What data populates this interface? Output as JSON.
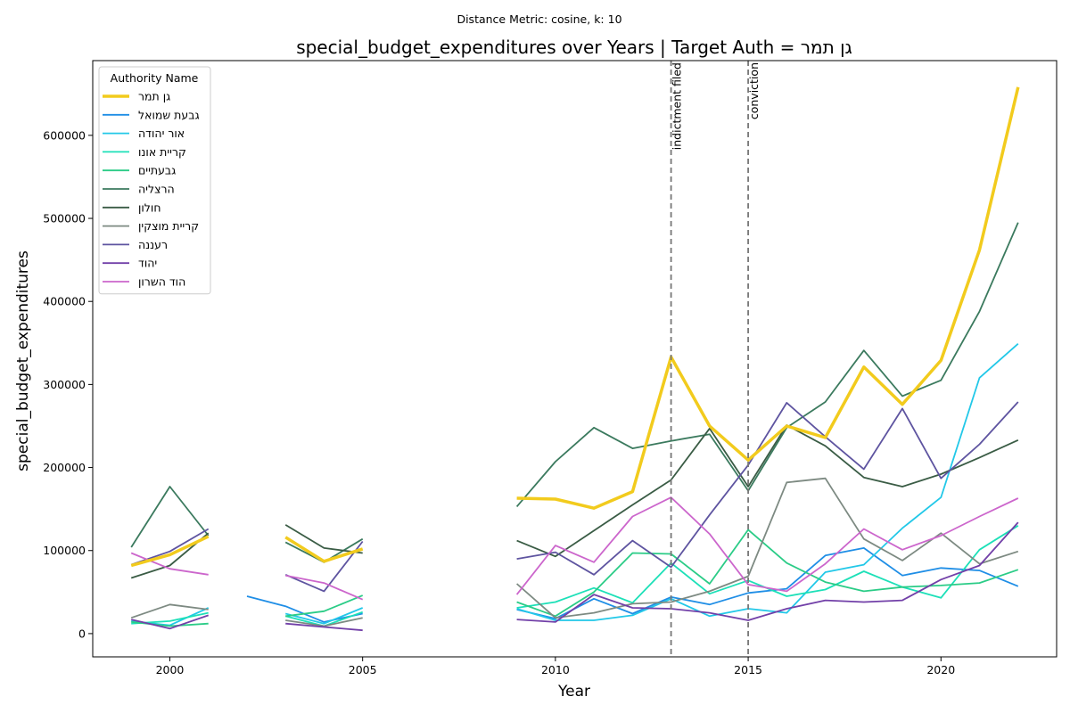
{
  "chart_data": {
    "type": "line",
    "suptitle": "Distance Metric: cosine, k: 10",
    "title": "special_budget_expenditures over Years | Target Auth = גן תמר",
    "xlabel": "Year",
    "ylabel": "special_budget_expenditures",
    "xlim": [
      1998,
      2023
    ],
    "ylim": [
      -28000,
      690000
    ],
    "xticks": [
      2000,
      2005,
      2010,
      2015,
      2020
    ],
    "yticks": [
      0,
      100000,
      200000,
      300000,
      400000,
      500000,
      600000
    ],
    "grid": false,
    "legend": {
      "title": "Authority Name",
      "placement": "upper-left"
    },
    "events": [
      {
        "x": 2013,
        "label": "indictment filed"
      },
      {
        "x": 2015,
        "label": "conviction"
      }
    ],
    "series": [
      {
        "name": "גן תמר",
        "color": "#f2cb1d",
        "target": true,
        "points": [
          [
            1999,
            82000
          ],
          [
            2000,
            95000
          ],
          [
            2001,
            117000
          ],
          [
            2003,
            116000
          ],
          [
            2004,
            87000
          ],
          [
            2005,
            102000
          ],
          [
            2009,
            163000
          ],
          [
            2010,
            162000
          ],
          [
            2011,
            151000
          ],
          [
            2012,
            171000
          ],
          [
            2013,
            333000
          ],
          [
            2014,
            250000
          ],
          [
            2015,
            209000
          ],
          [
            2016,
            250000
          ],
          [
            2017,
            236000
          ],
          [
            2018,
            321000
          ],
          [
            2019,
            276000
          ],
          [
            2020,
            329000
          ],
          [
            2021,
            462000
          ],
          [
            2022,
            658000
          ]
        ]
      },
      {
        "name": "גבעת שמואל",
        "color": "#1f8ee6",
        "points": [
          [
            2002,
            45000
          ],
          [
            2003,
            33000
          ],
          [
            2004,
            14000
          ],
          [
            2005,
            24000
          ],
          [
            2009,
            29000
          ],
          [
            2010,
            18000
          ],
          [
            2011,
            42000
          ],
          [
            2012,
            24000
          ],
          [
            2013,
            44000
          ],
          [
            2014,
            35000
          ],
          [
            2015,
            49000
          ],
          [
            2016,
            54000
          ],
          [
            2017,
            94000
          ],
          [
            2018,
            103000
          ],
          [
            2019,
            70000
          ],
          [
            2020,
            79000
          ],
          [
            2021,
            76000
          ],
          [
            2022,
            57000
          ]
        ]
      },
      {
        "name": "אור יהודה",
        "color": "#22c8e8",
        "points": [
          [
            1999,
            15000
          ],
          [
            2000,
            10000
          ],
          [
            2001,
            31000
          ],
          [
            2003,
            24000
          ],
          [
            2004,
            12000
          ],
          [
            2005,
            31000
          ],
          [
            2009,
            30000
          ],
          [
            2010,
            16000
          ],
          [
            2011,
            16000
          ],
          [
            2012,
            22000
          ],
          [
            2013,
            42000
          ],
          [
            2014,
            21000
          ],
          [
            2015,
            30000
          ],
          [
            2016,
            25000
          ],
          [
            2017,
            74000
          ],
          [
            2018,
            83000
          ],
          [
            2019,
            127000
          ],
          [
            2020,
            164000
          ],
          [
            2021,
            308000
          ],
          [
            2022,
            349000
          ]
        ]
      },
      {
        "name": "קריית אונו",
        "color": "#1de0b8",
        "points": [
          [
            1999,
            12000
          ],
          [
            2000,
            15000
          ],
          [
            2001,
            25000
          ],
          [
            2003,
            21000
          ],
          [
            2004,
            9000
          ],
          [
            2005,
            26000
          ],
          [
            2009,
            31000
          ],
          [
            2010,
            38000
          ],
          [
            2011,
            55000
          ],
          [
            2012,
            37000
          ],
          [
            2013,
            85000
          ],
          [
            2014,
            48000
          ],
          [
            2015,
            64000
          ],
          [
            2016,
            45000
          ],
          [
            2017,
            53000
          ],
          [
            2018,
            75000
          ],
          [
            2019,
            56000
          ],
          [
            2020,
            43000
          ],
          [
            2021,
            101000
          ],
          [
            2022,
            130000
          ]
        ]
      },
      {
        "name": "גבעתיים",
        "color": "#2bcc87",
        "points": [
          [
            1999,
            14000
          ],
          [
            2000,
            9000
          ],
          [
            2001,
            12000
          ],
          [
            2003,
            21000
          ],
          [
            2004,
            27000
          ],
          [
            2005,
            46000
          ],
          [
            2009,
            38000
          ],
          [
            2010,
            21000
          ],
          [
            2011,
            50000
          ],
          [
            2012,
            97000
          ],
          [
            2013,
            96000
          ],
          [
            2014,
            60000
          ],
          [
            2015,
            125000
          ],
          [
            2016,
            85000
          ],
          [
            2017,
            62000
          ],
          [
            2018,
            51000
          ],
          [
            2019,
            56000
          ],
          [
            2020,
            58000
          ],
          [
            2021,
            61000
          ],
          [
            2022,
            77000
          ]
        ]
      },
      {
        "name": "הרצליה",
        "color": "#3b7a5e",
        "points": [
          [
            1999,
            104000
          ],
          [
            2000,
            177000
          ],
          [
            2001,
            118000
          ],
          [
            2003,
            110000
          ],
          [
            2004,
            86000
          ],
          [
            2005,
            114000
          ],
          [
            2009,
            153000
          ],
          [
            2010,
            207000
          ],
          [
            2011,
            248000
          ],
          [
            2012,
            223000
          ],
          [
            2013,
            232000
          ],
          [
            2014,
            240000
          ],
          [
            2015,
            172000
          ],
          [
            2016,
            248000
          ],
          [
            2017,
            279000
          ],
          [
            2018,
            341000
          ],
          [
            2019,
            286000
          ],
          [
            2020,
            305000
          ],
          [
            2021,
            388000
          ],
          [
            2022,
            495000
          ]
        ]
      },
      {
        "name": "חולון",
        "color": "#3a5c45",
        "points": [
          [
            1999,
            67000
          ],
          [
            2000,
            82000
          ],
          [
            2001,
            121000
          ],
          [
            2003,
            131000
          ],
          [
            2004,
            103000
          ],
          [
            2005,
            97000
          ],
          [
            2009,
            112000
          ],
          [
            2010,
            93000
          ],
          [
            2011,
            124000
          ],
          [
            2012,
            155000
          ],
          [
            2013,
            185000
          ],
          [
            2014,
            247000
          ],
          [
            2015,
            177000
          ],
          [
            2016,
            251000
          ],
          [
            2017,
            226000
          ],
          [
            2018,
            188000
          ],
          [
            2019,
            177000
          ],
          [
            2020,
            192000
          ],
          [
            2021,
            212000
          ],
          [
            2022,
            233000
          ]
        ]
      },
      {
        "name": "קריית מוצקין",
        "color": "#7d8a82",
        "points": [
          [
            1999,
            19000
          ],
          [
            2000,
            35000
          ],
          [
            2001,
            29000
          ],
          [
            2003,
            16000
          ],
          [
            2004,
            9000
          ],
          [
            2005,
            19000
          ],
          [
            2009,
            60000
          ],
          [
            2010,
            19000
          ],
          [
            2011,
            25000
          ],
          [
            2012,
            36000
          ],
          [
            2013,
            38000
          ],
          [
            2014,
            51000
          ],
          [
            2015,
            69000
          ],
          [
            2016,
            182000
          ],
          [
            2017,
            187000
          ],
          [
            2018,
            114000
          ],
          [
            2019,
            88000
          ],
          [
            2020,
            121000
          ],
          [
            2021,
            84000
          ],
          [
            2022,
            99000
          ]
        ]
      },
      {
        "name": "רעננה",
        "color": "#5e54a0",
        "points": [
          [
            1999,
            83000
          ],
          [
            2000,
            99000
          ],
          [
            2001,
            126000
          ],
          [
            2003,
            71000
          ],
          [
            2004,
            51000
          ],
          [
            2005,
            111000
          ],
          [
            2009,
            90000
          ],
          [
            2010,
            98000
          ],
          [
            2011,
            71000
          ],
          [
            2012,
            112000
          ],
          [
            2013,
            80000
          ],
          [
            2014,
            143000
          ],
          [
            2015,
            203000
          ],
          [
            2016,
            278000
          ],
          [
            2017,
            237000
          ],
          [
            2018,
            198000
          ],
          [
            2019,
            271000
          ],
          [
            2020,
            187000
          ],
          [
            2021,
            228000
          ],
          [
            2022,
            279000
          ]
        ]
      },
      {
        "name": "יהוד",
        "color": "#7240a8",
        "points": [
          [
            1999,
            17000
          ],
          [
            2000,
            6000
          ],
          [
            2001,
            22000
          ],
          [
            2003,
            12000
          ],
          [
            2004,
            8000
          ],
          [
            2005,
            4000
          ],
          [
            2009,
            17000
          ],
          [
            2010,
            14000
          ],
          [
            2011,
            47000
          ],
          [
            2012,
            31000
          ],
          [
            2013,
            30000
          ],
          [
            2014,
            25000
          ],
          [
            2015,
            16000
          ],
          [
            2016,
            30000
          ],
          [
            2017,
            40000
          ],
          [
            2018,
            38000
          ],
          [
            2019,
            40000
          ],
          [
            2020,
            65000
          ],
          [
            2021,
            82000
          ],
          [
            2022,
            134000
          ]
        ]
      },
      {
        "name": "הוד השרון",
        "color": "#cc66cc",
        "points": [
          [
            1999,
            97000
          ],
          [
            2000,
            78000
          ],
          [
            2001,
            71000
          ],
          [
            2003,
            70000
          ],
          [
            2004,
            61000
          ],
          [
            2005,
            41000
          ],
          [
            2009,
            47000
          ],
          [
            2010,
            106000
          ],
          [
            2011,
            86000
          ],
          [
            2012,
            141000
          ],
          [
            2013,
            164000
          ],
          [
            2014,
            120000
          ],
          [
            2015,
            59000
          ],
          [
            2016,
            51000
          ],
          [
            2017,
            84000
          ],
          [
            2018,
            126000
          ],
          [
            2019,
            101000
          ],
          [
            2020,
            118000
          ],
          [
            2021,
            141000
          ],
          [
            2022,
            163000
          ]
        ]
      }
    ]
  }
}
